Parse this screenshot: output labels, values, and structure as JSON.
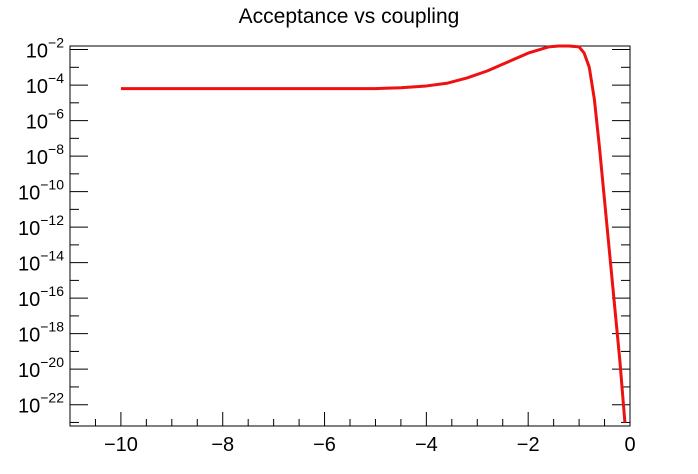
{
  "chart_data": {
    "type": "line",
    "title": "Acceptance vs coupling",
    "xlabel": "",
    "ylabel": "",
    "xlim": [
      -11,
      0
    ],
    "ylim_log10": [
      -23.2,
      -1.8
    ],
    "yscale": "log",
    "grid": false,
    "legend": "none",
    "x_ticks": [
      -10,
      -8,
      -6,
      -4,
      -2,
      0
    ],
    "x_tick_labels": [
      "−10",
      "−8",
      "−6",
      "−4",
      "−2",
      "0"
    ],
    "y_tick_exponents": [
      -2,
      -4,
      -6,
      -8,
      -10,
      -12,
      -14,
      -16,
      -18,
      -20,
      -22
    ],
    "y_tick_base": "10",
    "y_tick_exponent_labels": [
      "−2",
      "−4",
      "−6",
      "−8",
      "−10",
      "−12",
      "−14",
      "−16",
      "−18",
      "−20",
      "−22"
    ],
    "series": [
      {
        "color": "#ee1111",
        "x": [
          -10,
          -9,
          -8,
          -7,
          -6,
          -5,
          -4.5,
          -4,
          -3.6,
          -3.2,
          -2.8,
          -2.4,
          -2.0,
          -1.6,
          -1.4,
          -1.2,
          -1.0,
          -0.9,
          -0.8,
          -0.7,
          -0.6,
          -0.5,
          -0.4,
          -0.3,
          -0.2,
          -0.1
        ],
        "y_log10": [
          -4.2,
          -4.2,
          -4.2,
          -4.2,
          -4.2,
          -4.2,
          -4.15,
          -4.05,
          -3.9,
          -3.6,
          -3.2,
          -2.7,
          -2.2,
          -1.85,
          -1.8,
          -1.8,
          -1.85,
          -2.2,
          -3.0,
          -4.8,
          -7.5,
          -10.5,
          -13.5,
          -16.5,
          -19.5,
          -23.0
        ]
      }
    ]
  }
}
